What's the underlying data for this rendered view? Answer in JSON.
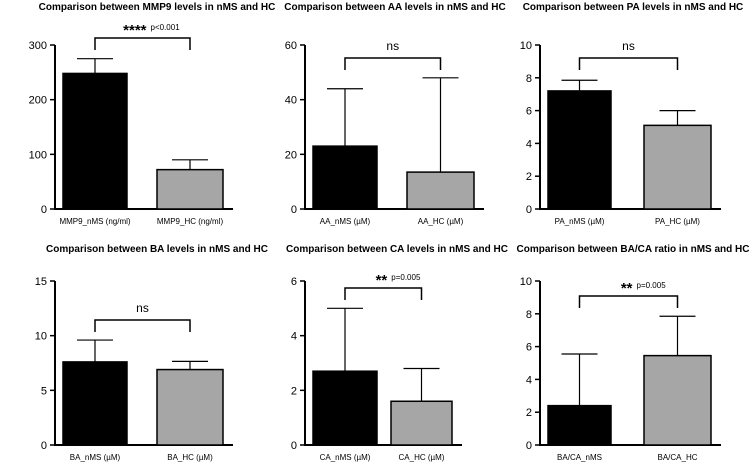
{
  "chart_data": [
    {
      "type": "bar",
      "title": "Comparison between MMP9 levels in nMS and HC",
      "categories": [
        "MMP9_nMS (ng/ml)",
        "MMP9_HC (ng/ml)"
      ],
      "values": [
        248,
        72
      ],
      "errors": [
        27,
        18
      ],
      "colors": [
        "#000000",
        "#a6a6a6"
      ],
      "ylim": [
        0,
        300
      ],
      "yticks": [
        "0",
        "100",
        "200",
        "300"
      ],
      "significance": {
        "stars": "****",
        "pvalue": "p<0.001",
        "label": ""
      }
    },
    {
      "type": "bar",
      "title": "Comparison between AA levels in nMS and HC",
      "categories": [
        "AA_nMS (µM)",
        "AA_HC (µM)"
      ],
      "values": [
        23,
        13.5
      ],
      "errors": [
        21,
        34.5
      ],
      "colors": [
        "#000000",
        "#a6a6a6"
      ],
      "ylim": [
        0,
        60
      ],
      "yticks": [
        "0",
        "20",
        "40",
        "60"
      ],
      "significance": {
        "stars": "",
        "pvalue": "",
        "label": "ns"
      }
    },
    {
      "type": "bar",
      "title": "Comparison between PA levels in nMS and HC",
      "categories": [
        "PA_nMS (µM)",
        "PA_HC (µM)"
      ],
      "values": [
        7.2,
        5.1
      ],
      "errors": [
        0.65,
        0.9
      ],
      "colors": [
        "#000000",
        "#a6a6a6"
      ],
      "ylim": [
        0,
        10
      ],
      "yticks": [
        "0",
        "2",
        "4",
        "6",
        "8",
        "10"
      ],
      "significance": {
        "stars": "",
        "pvalue": "",
        "label": "ns"
      }
    },
    {
      "type": "bar",
      "title": "Comparison between BA levels in nMS and HC",
      "categories": [
        "BA_nMS (µM)",
        "BA_HC (µM)"
      ],
      "values": [
        7.6,
        6.9
      ],
      "errors": [
        2.0,
        0.75
      ],
      "colors": [
        "#000000",
        "#a6a6a6"
      ],
      "ylim": [
        0,
        15
      ],
      "yticks": [
        "0",
        "5",
        "10",
        "15"
      ],
      "significance": {
        "stars": "",
        "pvalue": "",
        "label": "ns"
      }
    },
    {
      "type": "bar",
      "title": "Comparison between CA levels in nMS and HC",
      "categories": [
        "CA_nMS (µM)",
        "CA_HC (µM)"
      ],
      "values": [
        2.7,
        1.6
      ],
      "errors": [
        2.3,
        1.2
      ],
      "colors": [
        "#000000",
        "#a6a6a6"
      ],
      "ylim": [
        0,
        6
      ],
      "yticks": [
        "0",
        "2",
        "4",
        "6"
      ],
      "significance": {
        "stars": "**",
        "pvalue": "p=0.005",
        "label": ""
      }
    },
    {
      "type": "bar",
      "title": "Comparison between BA/CA ratio in nMS and HC",
      "categories": [
        "BA/CA_nMS",
        "BA/CA_HC"
      ],
      "values": [
        2.4,
        5.45
      ],
      "errors": [
        3.15,
        2.4
      ],
      "colors": [
        "#000000",
        "#a6a6a6"
      ],
      "ylim": [
        0,
        10
      ],
      "yticks": [
        "0",
        "2",
        "4",
        "6",
        "8",
        "10"
      ],
      "significance": {
        "stars": "**",
        "pvalue": "p=0.005",
        "label": ""
      }
    }
  ]
}
